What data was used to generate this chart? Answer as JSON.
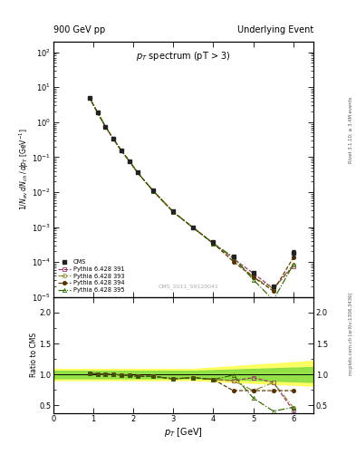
{
  "title_left": "900 GeV pp",
  "title_right": "Underlying Event",
  "plot_title": "p$_T$ spectrum (pT > 3)",
  "ylabel_main": "1/N$_{ev}$ dN$_{ch}$ / dp$_T$ [GeV$^{-1}$]",
  "ylabel_ratio": "Ratio to CMS",
  "xlabel": "p$_T$ [GeV]",
  "watermark": "CMS_2011_S9120041",
  "right_label1": "Rivet 3.1.10; ≥ 3.4M events",
  "right_label2": "mcplots.cern.ch [arXiv:1306.3436]",
  "cms_pt": [
    0.9,
    1.1,
    1.3,
    1.5,
    1.7,
    1.9,
    2.1,
    2.5,
    3.0,
    3.5,
    4.0,
    4.5,
    5.0,
    5.5,
    6.0
  ],
  "cms_y": [
    5.0,
    1.9,
    0.75,
    0.33,
    0.155,
    0.078,
    0.038,
    0.011,
    0.0029,
    0.001,
    0.00037,
    0.00014,
    5e-05,
    2e-05,
    0.00018
  ],
  "cms_yerr": [
    0.25,
    0.09,
    0.035,
    0.016,
    0.008,
    0.004,
    0.0018,
    0.0005,
    0.00012,
    4e-05,
    1.5e-05,
    6e-06,
    2.5e-06,
    1.5e-06,
    4e-05
  ],
  "py391_ratio": [
    1.02,
    1.01,
    1.005,
    1.005,
    0.99,
    0.985,
    0.97,
    0.97,
    0.93,
    0.95,
    0.92,
    0.9,
    0.95,
    0.87,
    0.42
  ],
  "py393_ratio": [
    1.02,
    1.01,
    1.005,
    1.005,
    0.99,
    0.985,
    0.97,
    0.97,
    0.93,
    0.95,
    0.92,
    0.9,
    0.74,
    0.87,
    0.47
  ],
  "py394_ratio": [
    1.02,
    1.01,
    1.005,
    1.005,
    0.99,
    0.985,
    0.97,
    0.97,
    0.93,
    0.95,
    0.92,
    0.74,
    0.74,
    0.74,
    0.74
  ],
  "py395_ratio": [
    1.02,
    1.01,
    1.005,
    1.005,
    0.99,
    0.985,
    0.97,
    0.97,
    0.93,
    0.95,
    0.92,
    0.99,
    0.62,
    0.41,
    0.47
  ],
  "color_cms": "#222222",
  "color_391": "#993366",
  "color_393": "#888833",
  "color_394": "#553300",
  "color_395": "#336600",
  "color_yellow": "#FFFF55",
  "color_green": "#88DD44",
  "xlim": [
    0.0,
    6.5
  ],
  "ylim_main": [
    1e-05,
    200
  ],
  "ylim_ratio": [
    0.38,
    2.25
  ],
  "ratio_yticks": [
    0.5,
    1.0,
    1.5,
    2.0
  ]
}
